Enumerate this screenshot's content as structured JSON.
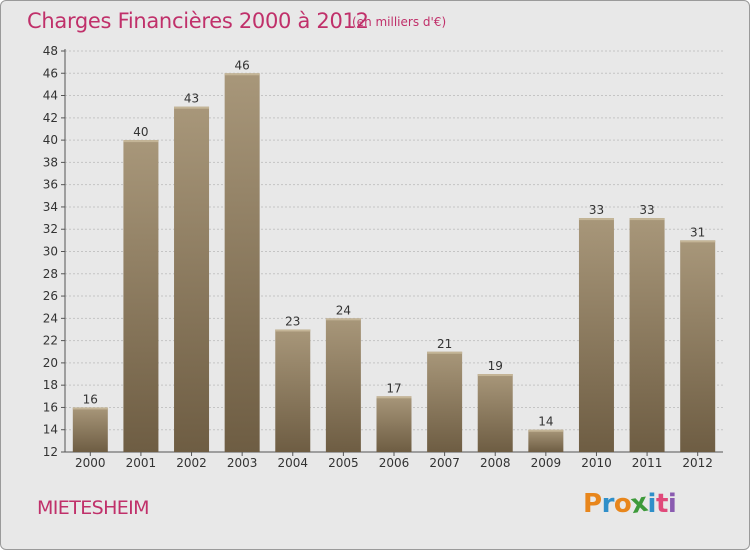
{
  "title": "Charges Financières 2000 à 2012",
  "subtitle": "(en milliers d'€)",
  "commune": "MIETESHEIM",
  "logo": {
    "letters": [
      "P",
      "r",
      "o",
      "x",
      "i",
      "t",
      "i"
    ],
    "colors": [
      "#e8861c",
      "#2f8fc9",
      "#e8861c",
      "#3d9a3a",
      "#2f8fc9",
      "#e0497a",
      "#8a5bb0"
    ]
  },
  "chart_data": {
    "type": "bar",
    "title": "Charges Financières 2000 à 2012",
    "subtitle": "(en milliers d'€)",
    "categories": [
      "2000",
      "2001",
      "2002",
      "2003",
      "2004",
      "2005",
      "2006",
      "2007",
      "2008",
      "2009",
      "2010",
      "2011",
      "2012"
    ],
    "values": [
      16,
      40,
      43,
      46,
      23,
      24,
      17,
      21,
      19,
      14,
      33,
      33,
      31
    ],
    "ylim": [
      12,
      48
    ],
    "yticks": [
      12,
      14,
      16,
      18,
      20,
      22,
      24,
      26,
      28,
      30,
      32,
      34,
      36,
      38,
      40,
      42,
      44,
      46,
      48
    ],
    "grid": true,
    "bar_color_top": "#a8977a",
    "bar_color_bottom": "#6e5d43"
  }
}
